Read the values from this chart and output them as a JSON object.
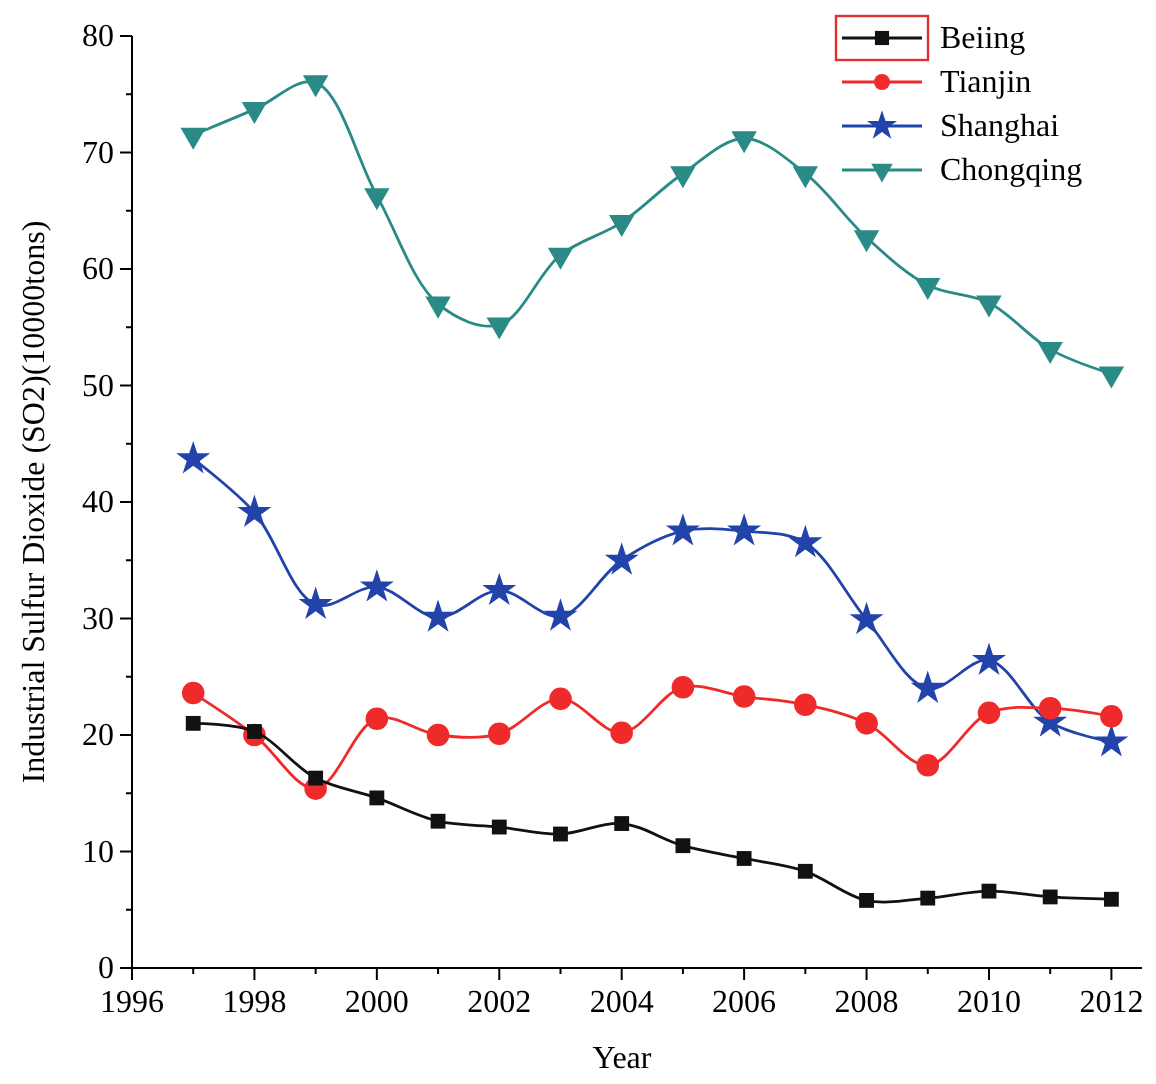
{
  "chart_data": {
    "type": "line",
    "xlabel": "Year",
    "ylabel": "Industrial Sulfur Dioxide (SO2)(10000tons)",
    "x": [
      1997,
      1998,
      1999,
      2000,
      2001,
      2002,
      2003,
      2004,
      2005,
      2006,
      2007,
      2008,
      2009,
      2010,
      2011,
      2012
    ],
    "series": [
      {
        "name": "Beiing",
        "color": "#111111",
        "marker": "square",
        "values": [
          21,
          20.3,
          16.3,
          14.6,
          12.6,
          12.1,
          11.5,
          12.4,
          10.5,
          9.4,
          8.3,
          5.8,
          6,
          6.6,
          6.1,
          5.9
        ]
      },
      {
        "name": "Tianjin",
        "color": "#ee2a2a",
        "marker": "circle",
        "values": [
          23.6,
          20,
          15.4,
          21.4,
          20,
          20.1,
          23.1,
          20.2,
          24.1,
          23.3,
          22.6,
          21,
          17.4,
          21.9,
          22.3,
          21.6
        ]
      },
      {
        "name": "Shanghai",
        "color": "#2244aa",
        "marker": "star",
        "values": [
          43.7,
          39.1,
          31.2,
          32.7,
          30.1,
          32.4,
          30.2,
          35,
          37.5,
          37.5,
          36.5,
          29.9,
          24,
          26.4,
          21.1,
          19.4
        ]
      },
      {
        "name": "Chongqing",
        "color": "#2a8a86",
        "marker": "triangle-down",
        "values": [
          71.5,
          73.7,
          76,
          66.3,
          57,
          55.2,
          61.2,
          64,
          68.2,
          71.2,
          68.2,
          62.7,
          58.6,
          57.1,
          53.1,
          51
        ]
      }
    ],
    "xlim": [
      1996,
      2012.5
    ],
    "ylim": [
      0,
      80
    ],
    "xticks": [
      1996,
      {
        "value": 1997,
        "label": null
      },
      1998,
      {
        "value": 1999,
        "label": null
      },
      2000,
      {
        "value": 2001,
        "label": null
      },
      2002,
      {
        "value": 2003,
        "label": null
      },
      2004,
      {
        "value": 2005,
        "label": null
      },
      2006,
      {
        "value": 2007,
        "label": null
      },
      2008,
      {
        "value": 2009,
        "label": null
      },
      2010,
      {
        "value": 2011,
        "label": null
      },
      2012
    ],
    "yticks": [
      0,
      {
        "value": 5,
        "label": null
      },
      10,
      {
        "value": 15,
        "label": null
      },
      20,
      {
        "value": 25,
        "label": null
      },
      30,
      {
        "value": 35,
        "label": null
      },
      40,
      {
        "value": 45,
        "label": null
      },
      50,
      {
        "value": 55,
        "label": null
      },
      60,
      {
        "value": 65,
        "label": null
      },
      70,
      {
        "value": 75,
        "label": null
      },
      80
    ],
    "legend": "top right",
    "grid": false
  }
}
